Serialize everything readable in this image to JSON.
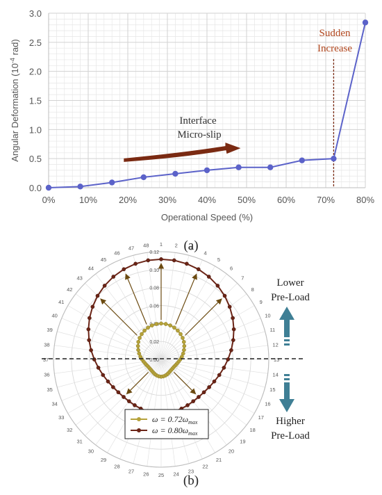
{
  "chart_data": [
    {
      "type": "line",
      "panel_label": "(a)",
      "xlabel": "Operational Speed (%)",
      "ylabel_main": "Angular Deformation (10",
      "ylabel_sup": "-4",
      "ylabel_tail": " rad)",
      "xlim": [
        0,
        80
      ],
      "ylim": [
        0,
        3.0
      ],
      "xticks": [
        0,
        10,
        20,
        30,
        40,
        50,
        60,
        70,
        80
      ],
      "xtick_labels": [
        "0%",
        "10%",
        "20%",
        "30%",
        "40%",
        "50%",
        "60%",
        "70%",
        "80%"
      ],
      "yticks": [
        0,
        0.5,
        1.0,
        1.5,
        2.0,
        2.5,
        3.0
      ],
      "ytick_labels": [
        "0.0",
        "0.5",
        "1.0",
        "1.5",
        "2.0",
        "2.5",
        "3.0"
      ],
      "grid": true,
      "series": [
        {
          "color": "#5b62c9",
          "x": [
            0,
            8,
            16,
            24,
            32,
            40,
            48,
            56,
            64,
            72,
            80
          ],
          "y": [
            0.0,
            0.02,
            0.09,
            0.18,
            0.24,
            0.3,
            0.35,
            0.35,
            0.47,
            0.5,
            2.84
          ]
        }
      ],
      "annotations": {
        "micro_slip_line1": "Interface",
        "micro_slip_line2": "Micro-slip",
        "sudden_line1": "Sudden",
        "sudden_line2": "Increase",
        "sudden_x": 72
      },
      "colors": {
        "arrow": "#7a2a12",
        "annotation_text": "#b0451c",
        "marker_line": "#7a2a12"
      }
    },
    {
      "type": "polar",
      "panel_label": "(b)",
      "angle_labels": [
        "1",
        "2",
        "3",
        "4",
        "5",
        "6",
        "7",
        "8",
        "9",
        "10",
        "11",
        "12",
        "13",
        "14",
        "15",
        "16",
        "17",
        "18",
        "19",
        "20",
        "21",
        "22",
        "23",
        "24",
        "25",
        "26",
        "27",
        "28",
        "29",
        "30",
        "31",
        "32",
        "33",
        "34",
        "35",
        "36",
        "37",
        "38",
        "39",
        "40",
        "41",
        "42",
        "43",
        "44",
        "45",
        "46",
        "47",
        "48"
      ],
      "radial_ticks": [
        0.0,
        0.02,
        0.04,
        0.06,
        0.08,
        0.1,
        0.12
      ],
      "radial_tick_labels": [
        "0.00",
        "0.02",
        "0.04",
        "0.06",
        "0.08",
        "0.10",
        "0.12"
      ],
      "rmax": 0.12,
      "series": [
        {
          "name_prefix": "ω = 0.72ω",
          "name_sub": "max",
          "color": "#b5a23a",
          "edge": "#8a7a2a",
          "r": [
            0.04,
            0.0398,
            0.0392,
            0.0383,
            0.0371,
            0.0356,
            0.0339,
            0.032,
            0.0298,
            0.0276,
            0.0254,
            0.0233,
            0.0213,
            0.0196,
            0.0182,
            0.0172,
            0.0165,
            0.0162,
            0.0162,
            0.0165,
            0.0171,
            0.0178,
            0.0185,
            0.019,
            0.0192,
            0.019,
            0.0185,
            0.0178,
            0.0171,
            0.0165,
            0.0162,
            0.0162,
            0.0165,
            0.0172,
            0.0182,
            0.0196,
            0.0213,
            0.0233,
            0.0254,
            0.0276,
            0.0298,
            0.032,
            0.0339,
            0.0356,
            0.0371,
            0.0383,
            0.0392,
            0.0398
          ]
        },
        {
          "name_prefix": "ω = 0.80ω",
          "name_sub": "max",
          "color": "#6b2416",
          "edge": "#4a1a0f",
          "r": [
            0.1116,
            0.1113,
            0.1103,
            0.1087,
            0.1064,
            0.1035,
            0.1002,
            0.0963,
            0.0922,
            0.0877,
            0.0832,
            0.0788,
            0.0745,
            0.0706,
            0.0671,
            0.0641,
            0.0618,
            0.0601,
            0.0591,
            0.0587,
            0.0589,
            0.0593,
            0.0595,
            0.0591,
            0.0576,
            0.0591,
            0.0595,
            0.0593,
            0.0589,
            0.0587,
            0.0591,
            0.0601,
            0.0618,
            0.0641,
            0.0671,
            0.0706,
            0.0745,
            0.0788,
            0.0832,
            0.0877,
            0.0922,
            0.0963,
            0.1002,
            0.1035,
            0.1064,
            0.1087,
            0.1103,
            0.1113
          ]
        }
      ],
      "side_labels": {
        "lower_line1": "Lower",
        "lower_line2": "Pre-Load",
        "higher_line1": "Higher",
        "higher_line2": "Pre-Load"
      },
      "colors": {
        "side_arrow": "#3f7f95",
        "dashed": "#222222",
        "radial_arrow": "#6b4a10"
      }
    }
  ]
}
